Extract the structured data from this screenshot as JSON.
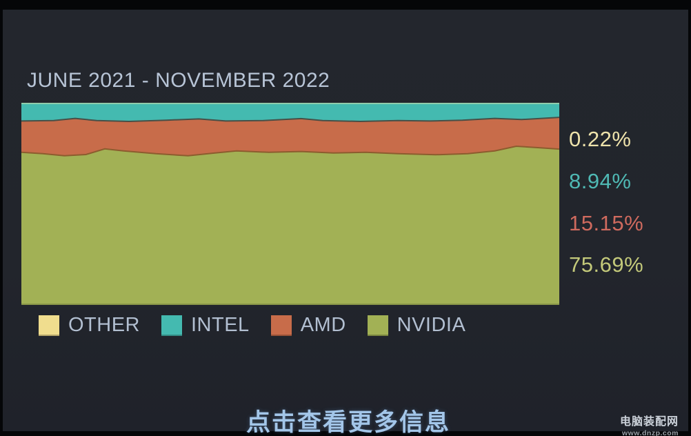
{
  "page": {
    "title": "JUNE 2021 - NOVEMBER 2022",
    "cta_text": "点击查看更多信息",
    "watermark": {
      "name": "电脑装配网",
      "url": "www.dnzp.com"
    },
    "colors": {
      "background": "#22252c",
      "frame": "#050608",
      "title_text": "#b7c4d6",
      "legend_text": "#b2bfd1",
      "cta_text": "#a3c6e9"
    }
  },
  "chart_data": {
    "type": "area",
    "title": "JUNE 2021 - NOVEMBER 2022",
    "x_range": [
      "JUNE 2021",
      "NOVEMBER 2022"
    ],
    "stack_top_to_bottom": [
      "OTHER",
      "INTEL",
      "AMD",
      "NVIDIA"
    ],
    "grid": false,
    "legend_position": "bottom",
    "value_labels_position": "right",
    "series": [
      {
        "name": "OTHER",
        "value_pct": 0.22,
        "label": "0.22%",
        "color": "#f0dd8e",
        "label_color": "#eee3ab"
      },
      {
        "name": "INTEL",
        "value_pct": 8.94,
        "label": "8.94%",
        "color": "#44bab0",
        "label_color": "#4fb9b4"
      },
      {
        "name": "AMD",
        "value_pct": 15.15,
        "label": "15.15%",
        "color": "#c86c4a",
        "label_color": "#cf6a5e"
      },
      {
        "name": "NVIDIA",
        "value_pct": 75.69,
        "label": "75.69%",
        "color": "#a2b155",
        "label_color": "#c3c97a"
      }
    ],
    "boundaries": {
      "intel_bottom": [
        [
          0.0,
          0.09
        ],
        [
          0.06,
          0.088
        ],
        [
          0.1,
          0.077
        ],
        [
          0.14,
          0.088
        ],
        [
          0.2,
          0.092
        ],
        [
          0.27,
          0.086
        ],
        [
          0.33,
          0.08
        ],
        [
          0.38,
          0.09
        ],
        [
          0.45,
          0.088
        ],
        [
          0.52,
          0.078
        ],
        [
          0.56,
          0.088
        ],
        [
          0.63,
          0.092
        ],
        [
          0.7,
          0.088
        ],
        [
          0.76,
          0.09
        ],
        [
          0.82,
          0.086
        ],
        [
          0.88,
          0.077
        ],
        [
          0.93,
          0.083
        ],
        [
          1.0,
          0.072
        ]
      ],
      "amd_bottom": [
        [
          0.0,
          0.245
        ],
        [
          0.04,
          0.252
        ],
        [
          0.08,
          0.262
        ],
        [
          0.12,
          0.256
        ],
        [
          0.155,
          0.228
        ],
        [
          0.19,
          0.238
        ],
        [
          0.25,
          0.252
        ],
        [
          0.31,
          0.262
        ],
        [
          0.36,
          0.248
        ],
        [
          0.4,
          0.238
        ],
        [
          0.46,
          0.245
        ],
        [
          0.52,
          0.241
        ],
        [
          0.58,
          0.248
        ],
        [
          0.64,
          0.245
        ],
        [
          0.7,
          0.252
        ],
        [
          0.77,
          0.257
        ],
        [
          0.83,
          0.252
        ],
        [
          0.88,
          0.238
        ],
        [
          0.92,
          0.215
        ],
        [
          0.96,
          0.222
        ],
        [
          1.0,
          0.229
        ]
      ]
    },
    "boundary_strokes": {
      "intel_bottom": "#474f47",
      "amd_bottom": "#8c5c2e"
    },
    "top_edge_highlight": "rgba(235,230,170,0.45)"
  }
}
